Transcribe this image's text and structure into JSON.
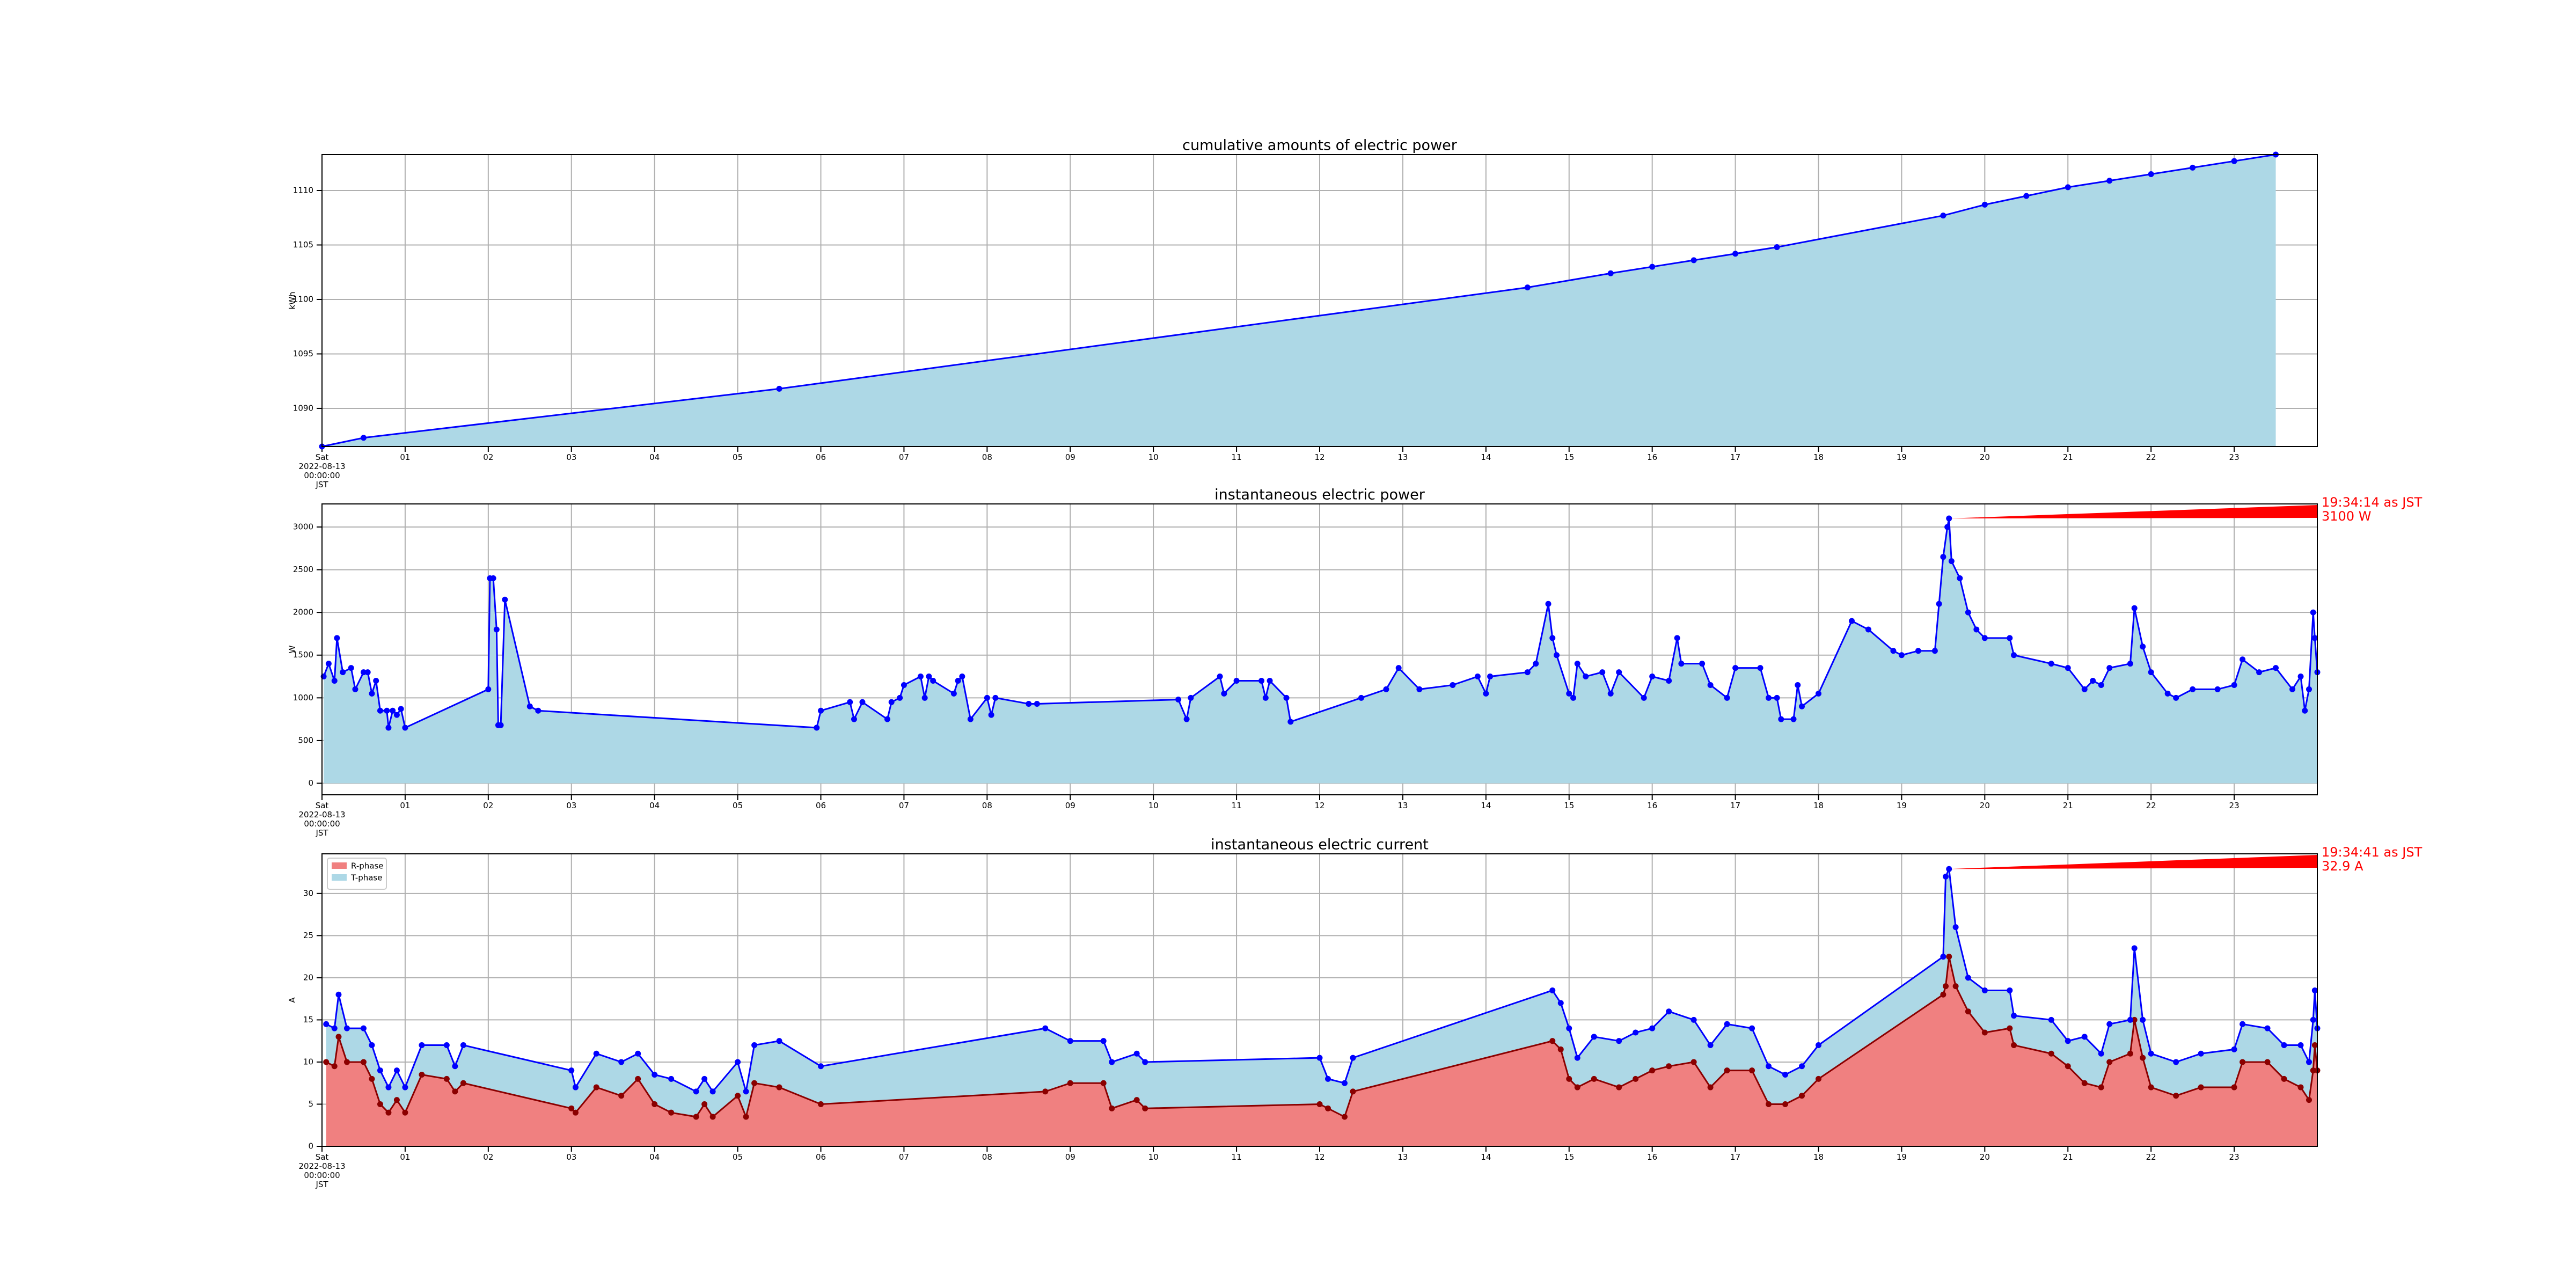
{
  "chart_data": [
    {
      "type": "area",
      "title": "cumulative amounts of electric power",
      "ylabel": "kWh",
      "x": [
        0,
        0.5,
        5.5,
        14.5,
        15.5,
        16,
        16.5,
        17,
        17.5,
        19.5,
        20,
        20.5,
        21,
        21.5,
        22,
        22.5,
        23,
        23.5
      ],
      "series": [
        {
          "color": "#add8e6",
          "line_color": "#0000ff",
          "values": [
            1086.5,
            1087.3,
            1091.8,
            1101.1,
            1102.4,
            1103.0,
            1103.6,
            1104.2,
            1104.8,
            1107.7,
            1108.7,
            1109.5,
            1110.3,
            1110.9,
            1111.5,
            1112.1,
            1112.7,
            1113.3
          ]
        }
      ],
      "xlim": [
        0,
        24
      ],
      "xticks": [
        {
          "value": 0,
          "label": "Sat\n2022-08-13\n00:00:00\nJST"
        },
        {
          "value": 1,
          "label": "01"
        },
        {
          "value": 2,
          "label": "02"
        },
        {
          "value": 3,
          "label": "03"
        },
        {
          "value": 4,
          "label": "04"
        },
        {
          "value": 5,
          "label": "05"
        },
        {
          "value": 6,
          "label": "06"
        },
        {
          "value": 7,
          "label": "07"
        },
        {
          "value": 8,
          "label": "08"
        },
        {
          "value": 9,
          "label": "09"
        },
        10,
        11,
        12,
        13,
        14,
        15,
        16,
        17,
        18,
        19,
        20,
        21,
        22,
        23
      ],
      "ylim": [
        1086.5,
        1113.3
      ],
      "yticks": [
        1090,
        1095,
        1100,
        1105,
        1110
      ],
      "grid": true
    },
    {
      "type": "area",
      "title": "instantaneous electric power",
      "ylabel": "W",
      "x": [
        0.02,
        0.08,
        0.15,
        0.18,
        0.25,
        0.35,
        0.4,
        0.5,
        0.55,
        0.6,
        0.65,
        0.7,
        0.78,
        0.8,
        0.85,
        0.9,
        0.95,
        1.0,
        2.0,
        2.02,
        2.06,
        2.1,
        2.12,
        2.15,
        2.2,
        2.5,
        2.6,
        5.95,
        6.0,
        6.35,
        6.4,
        6.5,
        6.8,
        6.85,
        6.95,
        7.0,
        7.2,
        7.25,
        7.3,
        7.35,
        7.6,
        7.65,
        7.7,
        7.8,
        8.0,
        8.05,
        8.1,
        8.5,
        8.6,
        10.3,
        10.4,
        10.45,
        10.8,
        10.85,
        11.0,
        11.3,
        11.35,
        11.4,
        11.6,
        11.65,
        12.5,
        12.8,
        12.95,
        13.2,
        13.6,
        13.9,
        14.0,
        14.05,
        14.5,
        14.6,
        14.75,
        14.8,
        14.85,
        15.0,
        15.05,
        15.1,
        15.2,
        15.4,
        15.5,
        15.6,
        15.9,
        16.0,
        16.2,
        16.3,
        16.35,
        16.6,
        16.7,
        16.9,
        17.0,
        17.3,
        17.4,
        17.5,
        17.55,
        17.7,
        17.75,
        17.8,
        18.0,
        18.4,
        18.6,
        18.9,
        19.0,
        19.2,
        19.4,
        19.45,
        19.5,
        19.55,
        19.57,
        19.6,
        19.7,
        19.8,
        19.9,
        20.0,
        20.3,
        20.35,
        20.8,
        21.0,
        21.2,
        21.3,
        21.4,
        21.5,
        21.75,
        21.8,
        21.9,
        22.0,
        22.2,
        22.3,
        22.5,
        22.8,
        23.0,
        23.1,
        23.3,
        23.5,
        23.7,
        23.8,
        23.85,
        23.9,
        23.95,
        23.97,
        24.0
      ],
      "series": [
        {
          "color": "#add8e6",
          "line_color": "#0000ff",
          "values": [
            1250,
            1400,
            1200,
            1700,
            1300,
            1350,
            1100,
            1300,
            1300,
            1050,
            1200,
            850,
            850,
            650,
            850,
            800,
            870,
            650,
            1100,
            2400,
            2400,
            1800,
            680,
            680,
            2150,
            900,
            850,
            650,
            850,
            950,
            750,
            950,
            750,
            950,
            1000,
            1150,
            1250,
            1000,
            1250,
            1200,
            1050,
            1200,
            1250,
            750,
            1000,
            800,
            1000,
            930,
            930,
            980,
            750,
            1000,
            1250,
            1050,
            1200,
            1200,
            1000,
            1200,
            1000,
            720,
            1000,
            1100,
            1350,
            1100,
            1150,
            1250,
            1050,
            1250,
            1300,
            1400,
            2100,
            1700,
            1500,
            1050,
            1000,
            1400,
            1250,
            1300,
            1050,
            1300,
            1000,
            1250,
            1200,
            1700,
            1400,
            1400,
            1150,
            1000,
            1350,
            1350,
            1000,
            1000,
            750,
            750,
            1150,
            900,
            1050,
            1900,
            1800,
            1550,
            1500,
            1550,
            1550,
            2100,
            2650,
            3000,
            3100,
            2600,
            2400,
            2000,
            1800,
            1700,
            1700,
            1500,
            1400,
            1350,
            1100,
            1200,
            1150,
            1350,
            1400,
            2050,
            1600,
            1300,
            1050,
            1000,
            1100,
            1100,
            1150,
            1450,
            1300,
            1350,
            1100,
            1250,
            850,
            1100,
            2000,
            1700,
            1300
          ]
        }
      ],
      "xlim": [
        0,
        24
      ],
      "xticks": [
        {
          "value": 0,
          "label": "Sat\n2022-08-13\n00:00:00\nJST"
        },
        {
          "value": 1,
          "label": "01"
        },
        {
          "value": 2,
          "label": "02"
        },
        {
          "value": 3,
          "label": "03"
        },
        {
          "value": 4,
          "label": "04"
        },
        {
          "value": 5,
          "label": "05"
        },
        {
          "value": 6,
          "label": "06"
        },
        {
          "value": 7,
          "label": "07"
        },
        {
          "value": 8,
          "label": "08"
        },
        {
          "value": 9,
          "label": "09"
        },
        10,
        11,
        12,
        13,
        14,
        15,
        16,
        17,
        18,
        19,
        20,
        21,
        22,
        23
      ],
      "ylim": [
        -135,
        3270
      ],
      "yticks": [
        0,
        500,
        1000,
        1500,
        2000,
        2500,
        3000
      ],
      "grid": true,
      "annotation": "19:34:14 as JST\n3100 W",
      "annotation_color": "#ff0000"
    },
    {
      "type": "area",
      "stacked": true,
      "title": "instantaneous electric current",
      "ylabel": "A",
      "x": [
        0.05,
        0.15,
        0.2,
        0.3,
        0.5,
        0.6,
        0.7,
        0.8,
        0.9,
        1.0,
        1.2,
        1.5,
        1.6,
        1.7,
        3.0,
        3.05,
        3.3,
        3.6,
        3.8,
        4.0,
        4.2,
        4.5,
        4.6,
        4.7,
        5.0,
        5.1,
        5.2,
        5.5,
        6.0,
        8.7,
        9.0,
        9.4,
        9.5,
        9.8,
        9.9,
        12.0,
        12.1,
        12.3,
        12.4,
        14.8,
        14.9,
        15.0,
        15.1,
        15.3,
        15.6,
        15.8,
        16.0,
        16.2,
        16.5,
        16.7,
        16.9,
        17.2,
        17.4,
        17.6,
        17.8,
        18.0,
        19.5,
        19.53,
        19.57,
        19.65,
        19.8,
        20.0,
        20.3,
        20.35,
        20.8,
        21.0,
        21.2,
        21.4,
        21.5,
        21.75,
        21.8,
        21.9,
        22.0,
        22.3,
        22.6,
        23.0,
        23.1,
        23.4,
        23.6,
        23.8,
        23.9,
        23.95,
        23.97,
        24.0
      ],
      "series": [
        {
          "name": "R-phase",
          "color": "#f08080",
          "line_color": "#8b0000",
          "values": [
            10,
            9.5,
            13,
            10,
            10,
            8,
            5,
            4,
            5.5,
            4,
            8.5,
            8,
            6.5,
            7.5,
            4.5,
            4,
            7,
            6,
            8,
            5,
            4,
            3.5,
            5,
            3.5,
            6,
            3.5,
            7.5,
            7,
            5,
            6.5,
            7.5,
            7.5,
            4.5,
            5.5,
            4.5,
            5,
            4.5,
            3.5,
            6.5,
            12.5,
            11.5,
            8,
            7,
            8,
            7,
            8,
            9,
            9.5,
            10,
            7,
            9,
            9,
            5,
            5,
            6,
            8,
            18,
            19,
            22.5,
            19,
            16,
            13.5,
            14,
            12,
            11,
            9.5,
            7.5,
            7,
            10,
            11,
            15,
            10.5,
            7,
            6,
            7,
            7,
            10,
            10,
            8,
            7,
            5.5,
            9,
            12,
            9
          ]
        },
        {
          "name": "T-phase",
          "color": "#add8e6",
          "line_color": "#0000ff",
          "values": [
            4.5,
            4.5,
            5,
            4,
            4,
            4,
            4,
            3,
            3.5,
            3,
            3.5,
            4,
            3,
            4.5,
            4.5,
            3,
            4,
            4,
            3,
            3.5,
            4,
            3,
            3,
            3,
            4,
            3,
            4.5,
            5.5,
            4.5,
            7.5,
            5,
            5,
            5.5,
            5.5,
            5.5,
            5.5,
            3.5,
            4,
            4,
            6,
            5.5,
            6,
            3.5,
            5,
            5.5,
            5.5,
            5,
            6.5,
            5,
            5,
            5.5,
            5,
            4.5,
            3.5,
            3.5,
            4,
            4.5,
            13,
            10.4,
            7,
            4,
            5,
            4.5,
            3.5,
            4,
            3,
            5.5,
            4,
            4.5,
            4,
            8.5,
            4.5,
            4,
            4,
            4,
            4.5,
            4.5,
            4,
            4,
            5,
            4.5,
            6,
            6.5,
            5
          ]
        }
      ],
      "xlim": [
        0,
        24
      ],
      "xticks": [
        {
          "value": 0,
          "label": "Sat\n2022-08-13\n00:00:00\nJST"
        },
        {
          "value": 1,
          "label": "01"
        },
        {
          "value": 2,
          "label": "02"
        },
        {
          "value": 3,
          "label": "03"
        },
        {
          "value": 4,
          "label": "04"
        },
        {
          "value": 5,
          "label": "05"
        },
        {
          "value": 6,
          "label": "06"
        },
        {
          "value": 7,
          "label": "07"
        },
        {
          "value": 8,
          "label": "08"
        },
        {
          "value": 9,
          "label": "09"
        },
        10,
        11,
        12,
        13,
        14,
        15,
        16,
        17,
        18,
        19,
        20,
        21,
        22,
        23
      ],
      "ylim": [
        0,
        34.7
      ],
      "yticks": [
        0,
        5,
        10,
        15,
        20,
        25,
        30
      ],
      "grid": true,
      "legend": "upper left",
      "annotation": "19:34:41 as JST\n32.9 A",
      "annotation_color": "#ff0000"
    }
  ]
}
